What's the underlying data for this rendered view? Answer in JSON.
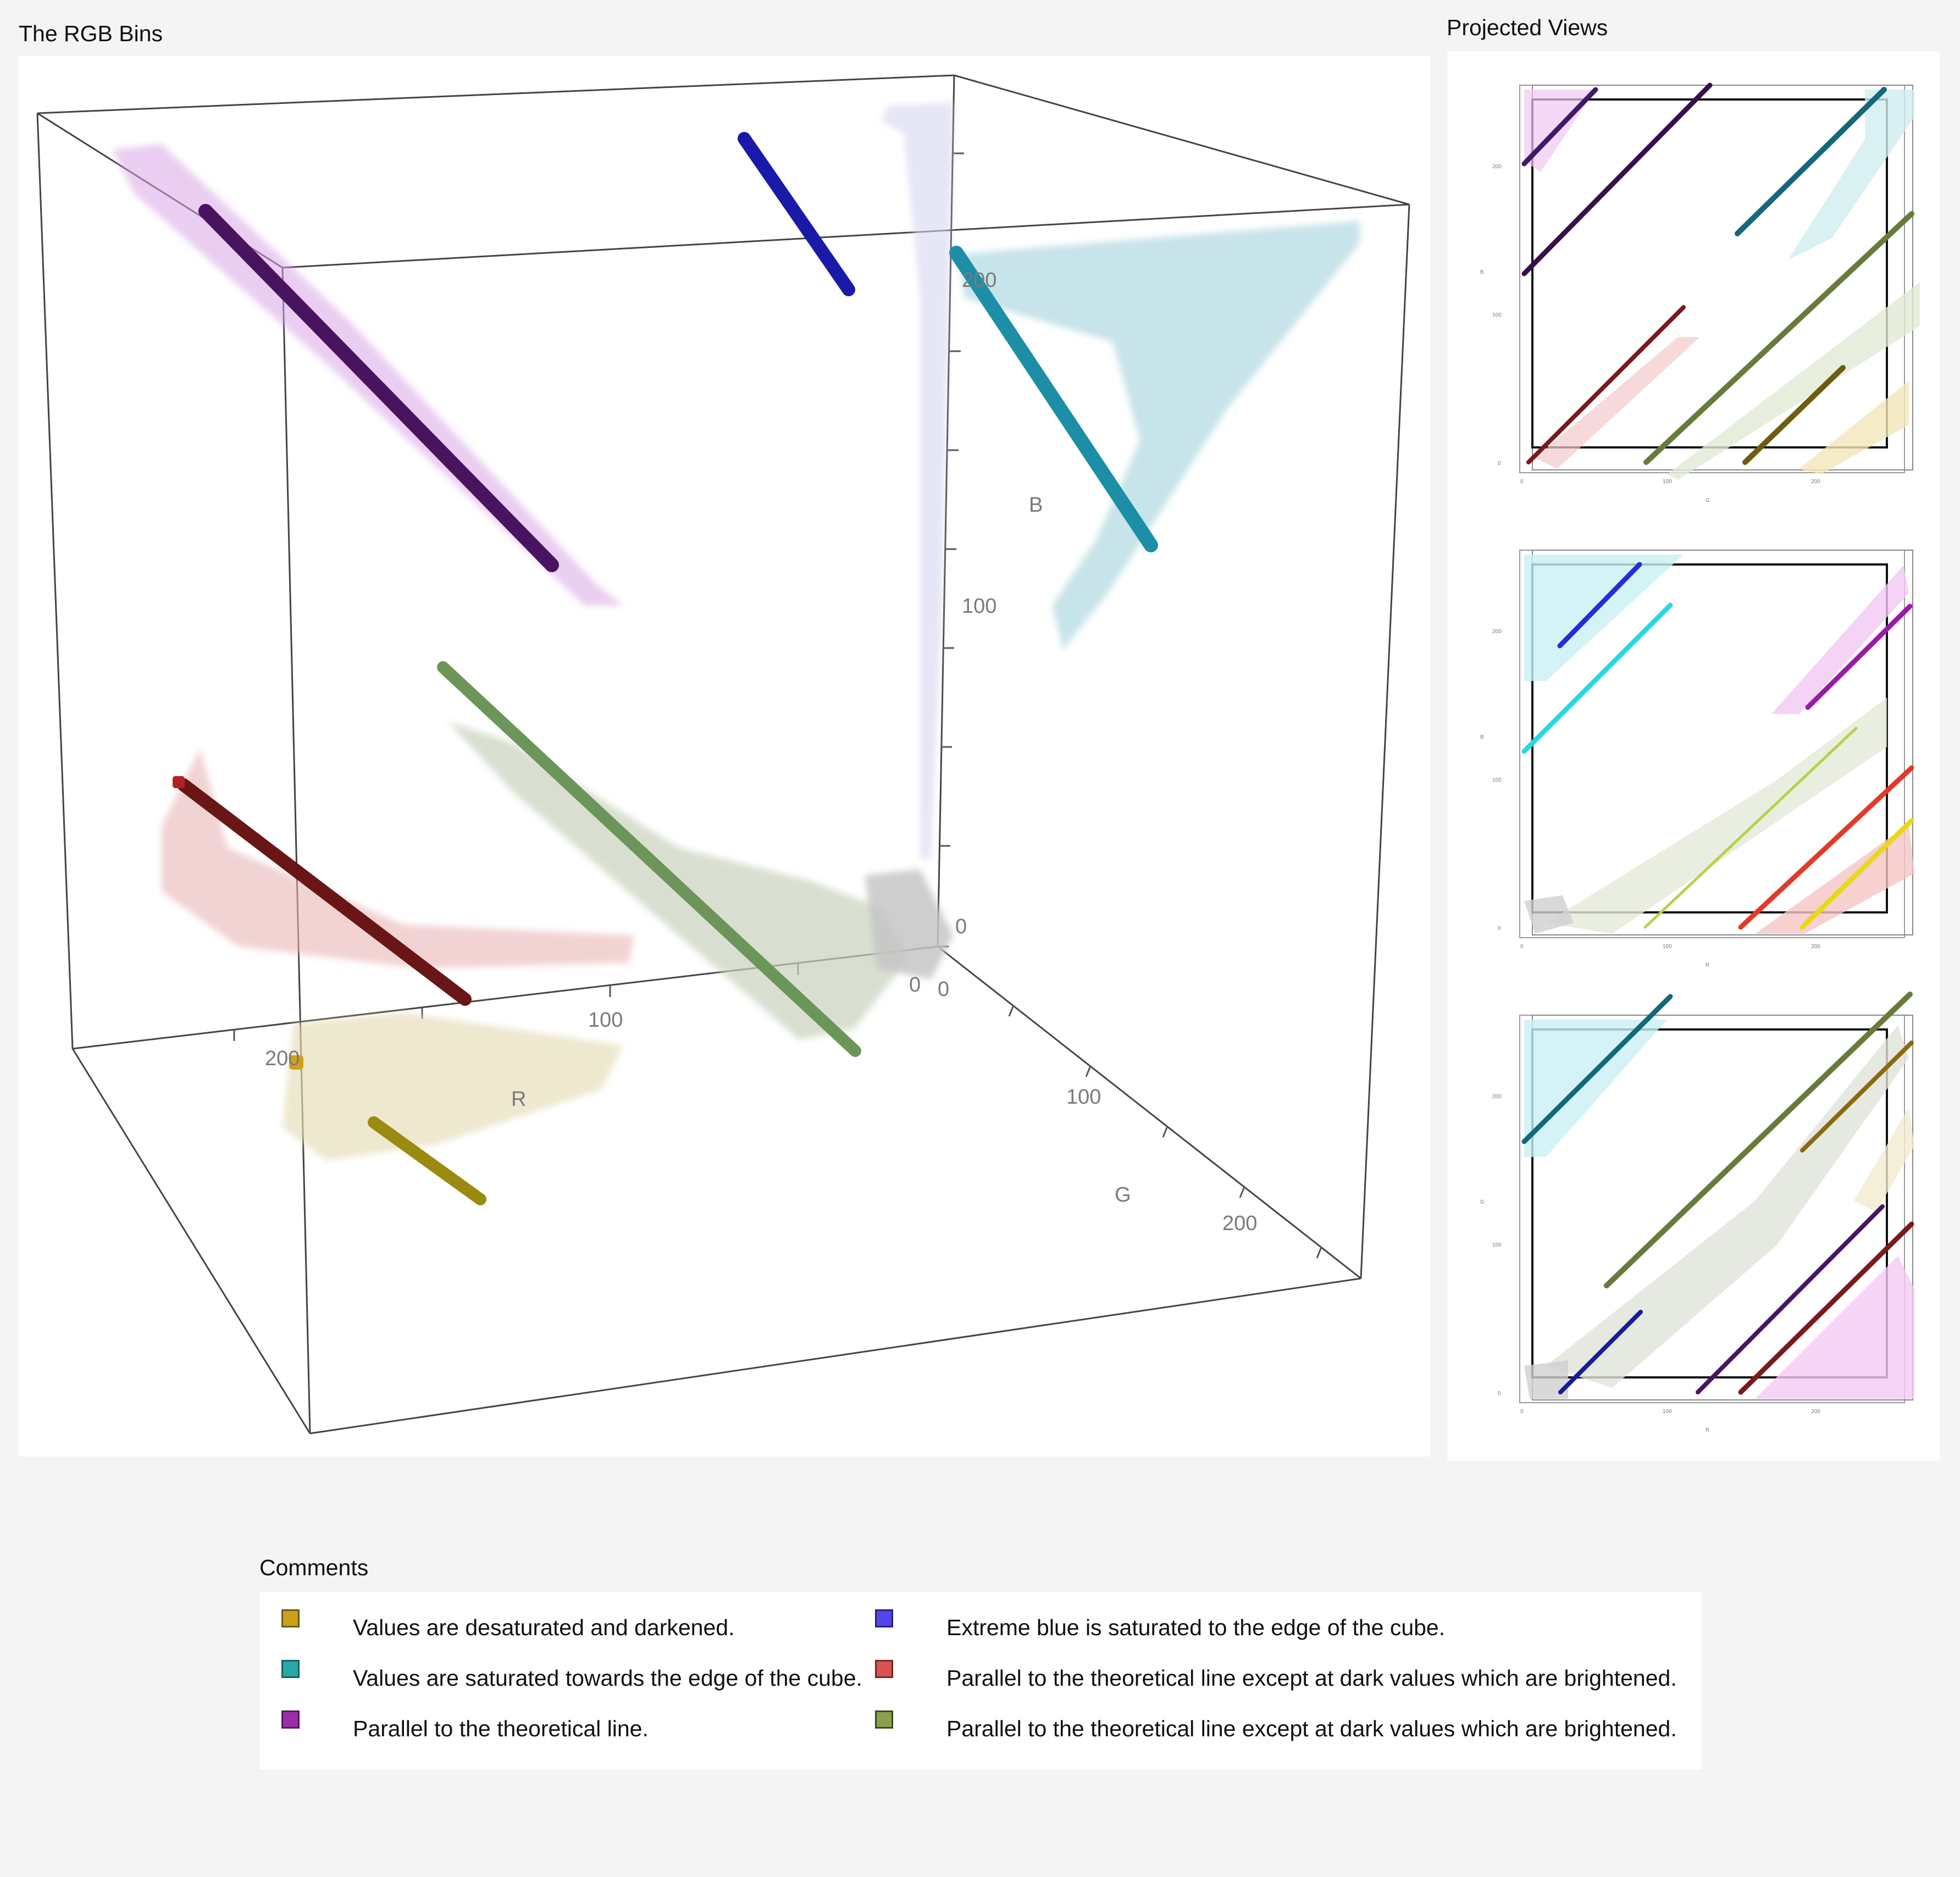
{
  "main": {
    "title": "The RGB Bins",
    "axes": {
      "r_label": "R",
      "g_label": "G",
      "b_label": "B",
      "r_ticks": [
        "0",
        "100",
        "200"
      ],
      "g_ticks": [
        "0",
        "100",
        "200"
      ],
      "b_ticks": [
        "0",
        "100",
        "200"
      ]
    }
  },
  "projected": {
    "title": "Projected Views",
    "views": [
      {
        "xlabel": "G",
        "ylabel": "B",
        "xticks": [
          "0",
          "100",
          "200"
        ],
        "yticks": [
          "0",
          "100",
          "200"
        ]
      },
      {
        "xlabel": "R",
        "ylabel": "B",
        "xticks": [
          "0",
          "100",
          "200"
        ],
        "yticks": [
          "0",
          "100",
          "200"
        ]
      },
      {
        "xlabel": "R",
        "ylabel": "G",
        "xticks": [
          "0",
          "100",
          "200"
        ],
        "yticks": [
          "0",
          "100",
          "200"
        ]
      }
    ]
  },
  "comments": {
    "title": "Comments",
    "items": [
      {
        "color": "#c9a21b",
        "text": "Values are desaturated and darkened."
      },
      {
        "color": "#2aa8a8",
        "text": "Values are saturated towards the edge of the cube."
      },
      {
        "color": "#9b2ea8",
        "text": "Parallel to the theoretical line."
      },
      {
        "color": "#5048e8",
        "text": "Extreme blue is saturated to the edge of the cube."
      },
      {
        "color": "#d9534f",
        "text": "Parallel to the theoretical line except at dark values which are brightened."
      },
      {
        "color": "#8aa04e",
        "text": "Parallel to the theoretical line except at dark values which are brightened."
      }
    ]
  },
  "colors": {
    "yellow": "#b8a01c",
    "cyan": "#2aa8b8",
    "purple": "#5a1a6a",
    "blue": "#1a1ab8",
    "red": "#7a1a1a",
    "green": "#7a9a4a"
  }
}
